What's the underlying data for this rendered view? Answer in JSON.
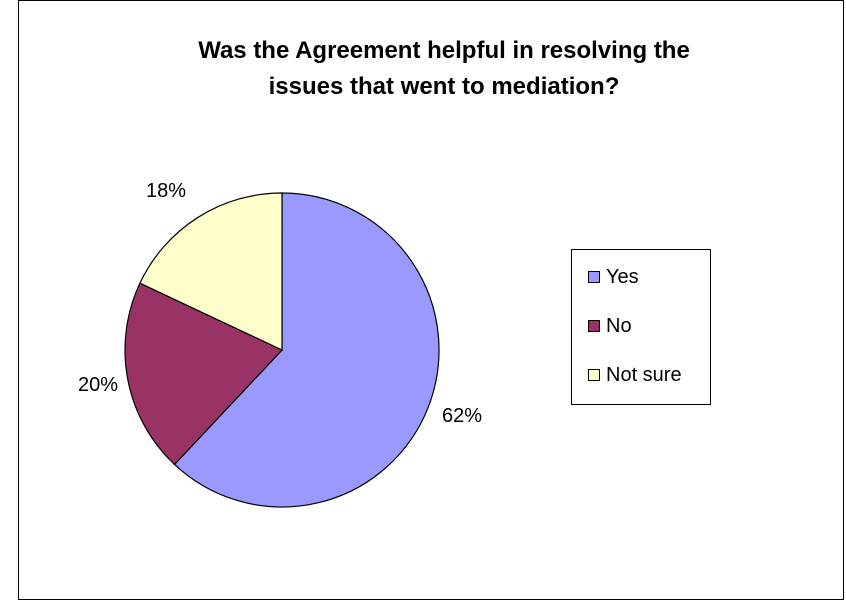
{
  "chart_data": {
    "type": "pie",
    "title": "Was the Agreement helpful in resolving the issues that went to mediation?",
    "title_lines": [
      "Was the Agreement helpful in resolving the",
      "issues that went to mediation?"
    ],
    "categories": [
      "Yes",
      "No",
      "Not sure"
    ],
    "values": [
      62,
      20,
      18
    ],
    "value_labels": [
      "62%",
      "20%",
      "18%"
    ],
    "colors": [
      "#9999FF",
      "#993366",
      "#FFFFCC"
    ],
    "legend_position": "right",
    "start_angle": "12 o'clock, clockwise"
  }
}
